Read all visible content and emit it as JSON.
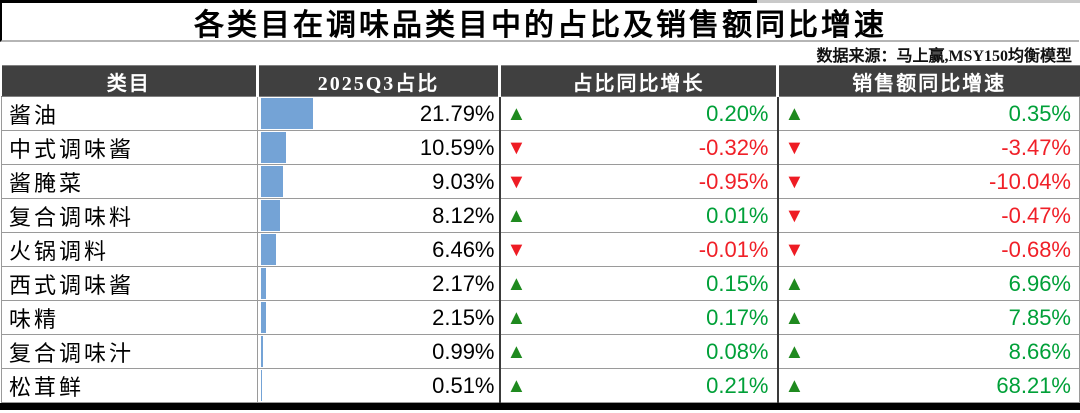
{
  "page": {
    "title": "各类目在调味品类目中的占比及销售额同比增速",
    "source": "数据来源：马上赢,MSY150均衡模型"
  },
  "colors": {
    "positive_text": "#00a038",
    "negative_text": "#f02028",
    "up_triangle": "#1f8a1f",
    "down_triangle": "#ee1c24",
    "bar_fill": "#74a3d6",
    "header_bg": "#404040",
    "header_text": "#ffffff"
  },
  "chart_data": {
    "type": "table",
    "title": "各类目在调味品类目中的占比及销售额同比增速",
    "source": "数据来源：马上赢,MSY150均衡模型",
    "columns": [
      "类目",
      "2025Q3占比",
      "占比同比增长",
      "销售额同比增速"
    ],
    "bar_column": {
      "applies_to": "2025Q3占比",
      "max_value": 21.79
    },
    "rows": [
      {
        "category": "酱油",
        "share": "21.79%",
        "share_value": 21.79,
        "share_trend": "▲",
        "share_growth": "0.20%",
        "sales_trend": "▲",
        "sales_growth": "0.35%"
      },
      {
        "category": "中式调味酱",
        "share": "10.59%",
        "share_value": 10.59,
        "share_trend": "▼",
        "share_growth": "-0.32%",
        "sales_trend": "▼",
        "sales_growth": "-3.47%"
      },
      {
        "category": "酱腌菜",
        "share": "9.03%",
        "share_value": 9.03,
        "share_trend": "▼",
        "share_growth": "-0.95%",
        "sales_trend": "▼",
        "sales_growth": "-10.04%"
      },
      {
        "category": "复合调味料",
        "share": "8.12%",
        "share_value": 8.12,
        "share_trend": "▲",
        "share_growth": "0.01%",
        "sales_trend": "▼",
        "sales_growth": "-0.47%"
      },
      {
        "category": "火锅调料",
        "share": "6.46%",
        "share_value": 6.46,
        "share_trend": "▼",
        "share_growth": "-0.01%",
        "sales_trend": "▼",
        "sales_growth": "-0.68%"
      },
      {
        "category": "西式调味酱",
        "share": "2.17%",
        "share_value": 2.17,
        "share_trend": "▲",
        "share_growth": "0.15%",
        "sales_trend": "▲",
        "sales_growth": "6.96%"
      },
      {
        "category": "味精",
        "share": "2.15%",
        "share_value": 2.15,
        "share_trend": "▲",
        "share_growth": "0.17%",
        "sales_trend": "▲",
        "sales_growth": "7.85%"
      },
      {
        "category": "复合调味汁",
        "share": "0.99%",
        "share_value": 0.99,
        "share_trend": "▲",
        "share_growth": "0.08%",
        "sales_trend": "▲",
        "sales_growth": "8.66%"
      },
      {
        "category": "松茸鲜",
        "share": "0.51%",
        "share_value": 0.51,
        "share_trend": "▲",
        "share_growth": "0.21%",
        "sales_trend": "▲",
        "sales_growth": "68.21%"
      }
    ]
  }
}
